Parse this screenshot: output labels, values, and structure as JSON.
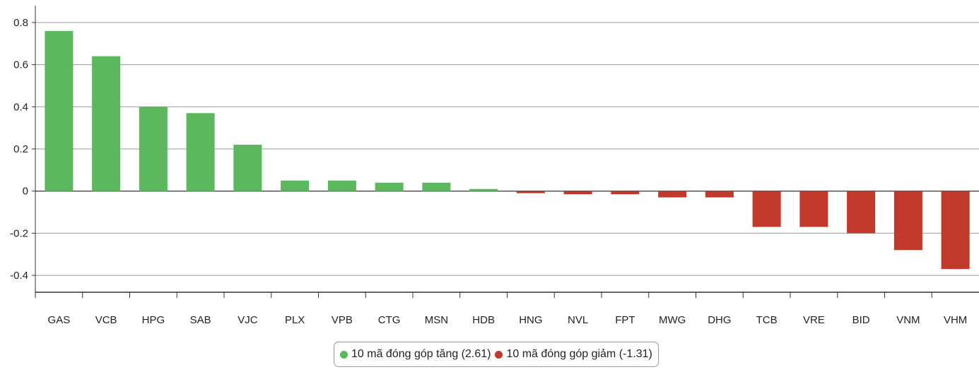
{
  "chart_data": {
    "type": "bar",
    "categories": [
      "GAS",
      "VCB",
      "HPG",
      "SAB",
      "VJC",
      "PLX",
      "VPB",
      "CTG",
      "MSN",
      "HDB",
      "HNG",
      "NVL",
      "FPT",
      "MWG",
      "DHG",
      "TCB",
      "VRE",
      "BID",
      "VNM",
      "VHM"
    ],
    "values": [
      0.76,
      0.64,
      0.4,
      0.37,
      0.22,
      0.05,
      0.05,
      0.04,
      0.04,
      0.01,
      -0.01,
      -0.015,
      -0.015,
      -0.03,
      -0.03,
      -0.17,
      -0.17,
      -0.2,
      -0.28,
      -0.37
    ],
    "yticks": [
      0.8,
      0.6,
      0.4,
      0.2,
      0,
      -0.2,
      -0.4
    ],
    "ytick_labels": [
      "0.8",
      "0.6",
      "0.4",
      "0.2",
      "0",
      "-0.2",
      "-0.4"
    ],
    "ylim": [
      -0.48,
      0.88
    ],
    "grid": true,
    "colors": {
      "positive": "#5cb85c",
      "negative": "#c0392b"
    },
    "legend_position": "bottom-center",
    "legend": [
      {
        "label": "10 mã đóng góp tăng (2.61)",
        "color": "#5cb85c"
      },
      {
        "label": "10 mã đóng góp giảm (-1.31)",
        "color": "#c0392b"
      }
    ]
  }
}
